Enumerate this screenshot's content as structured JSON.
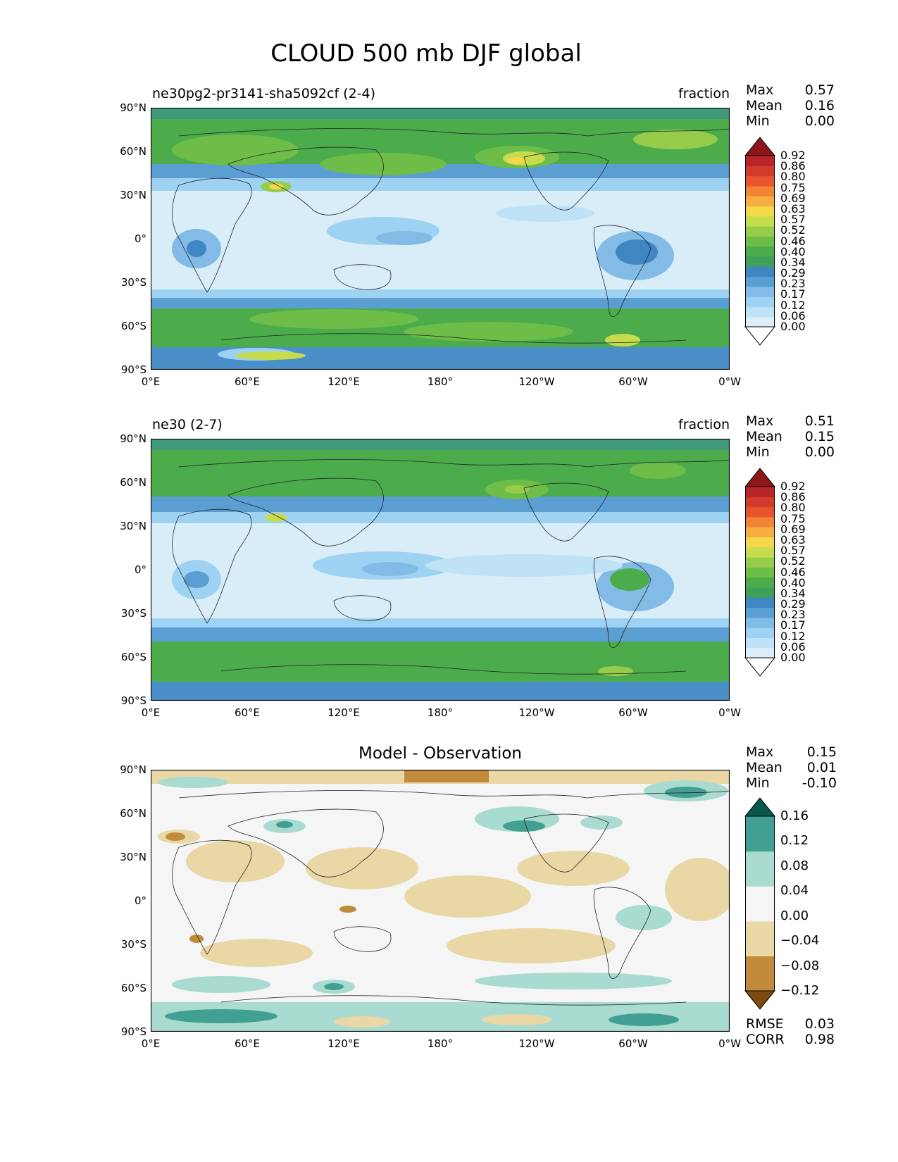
{
  "title": "CLOUD 500 mb DJF global",
  "lat_ticks": [
    "90°N",
    "60°N",
    "30°N",
    "0°",
    "30°S",
    "60°S",
    "90°S"
  ],
  "lon_ticks": [
    "0°E",
    "60°E",
    "120°E",
    "180°",
    "120°W",
    "60°W",
    "0°W"
  ],
  "panel1": {
    "left_title": "ne30pg2-pr3141-sha5092cf (2-4)",
    "right_title": "fraction",
    "stats": [
      {
        "k": "Max",
        "v": "0.57"
      },
      {
        "k": "Mean",
        "v": "0.16"
      },
      {
        "k": "Min",
        "v": "0.00"
      }
    ]
  },
  "panel2": {
    "left_title": "ne30 (2-7)",
    "right_title": "fraction",
    "stats": [
      {
        "k": "Max",
        "v": "0.51"
      },
      {
        "k": "Mean",
        "v": "0.15"
      },
      {
        "k": "Min",
        "v": "0.00"
      }
    ]
  },
  "panel3": {
    "center_title": "Model - Observation",
    "stats": [
      {
        "k": "Max",
        "v": "0.15"
      },
      {
        "k": "Mean",
        "v": "0.01"
      },
      {
        "k": "Min",
        "v": "-0.10"
      }
    ],
    "bottom_stats": [
      {
        "k": "RMSE",
        "v": "0.03"
      },
      {
        "k": "CORR",
        "v": "0.98"
      }
    ]
  },
  "colorbar_main": {
    "labels": [
      "0.92",
      "0.86",
      "0.80",
      "0.75",
      "0.69",
      "0.63",
      "0.57",
      "0.52",
      "0.46",
      "0.40",
      "0.34",
      "0.29",
      "0.23",
      "0.17",
      "0.12",
      "0.06",
      "0.00"
    ],
    "colors": [
      "#ffffff",
      "#ddeef9",
      "#bfe2f7",
      "#9ed2f2",
      "#82bce6",
      "#5b9fd2",
      "#3f86c2",
      "#3ea05a",
      "#4cac4b",
      "#6dbd48",
      "#97cc4a",
      "#c6dc4c",
      "#f4d84a",
      "#f6ae44",
      "#f28535",
      "#e6552d",
      "#d23a2e",
      "#b82528",
      "#8e1519"
    ]
  },
  "colorbar_diff": {
    "labels": [
      "0.16",
      "0.12",
      "0.08",
      "0.04",
      "0.00",
      "−0.04",
      "−0.08",
      "−0.12"
    ],
    "colors": [
      "#7a4a0e",
      "#c28a3b",
      "#ead7a6",
      "#f4f5f4",
      "#a9dbd1",
      "#42a093",
      "#08574d"
    ]
  }
}
